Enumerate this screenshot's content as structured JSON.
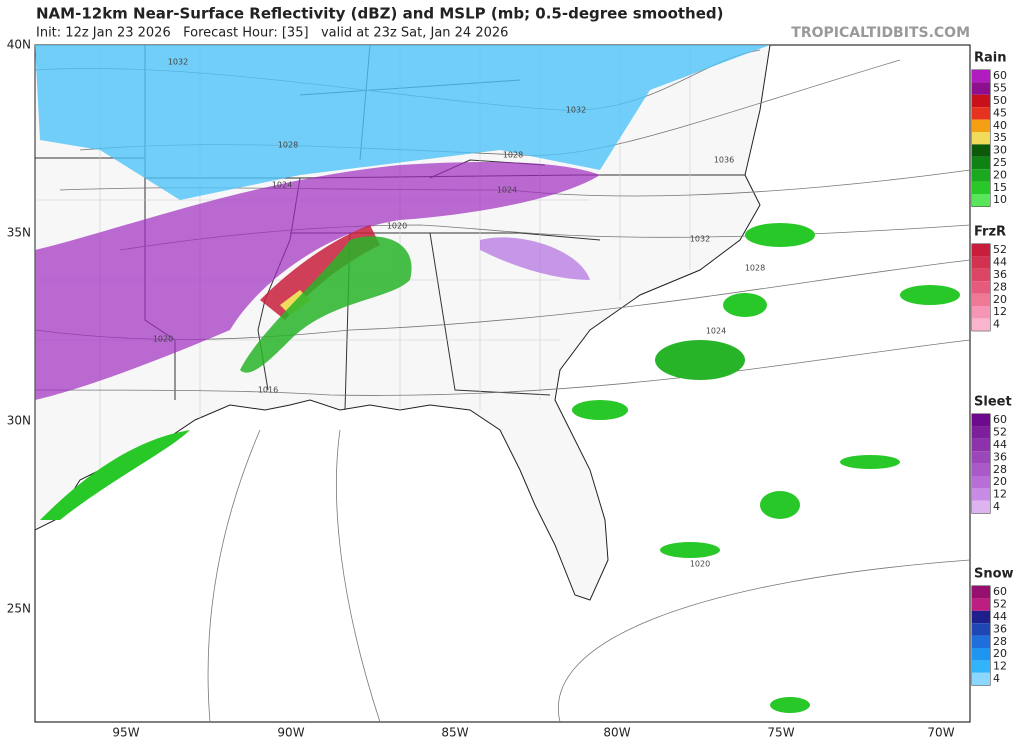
{
  "header": {
    "title": "NAM-12km Near-Surface Reflectivity (dBZ) and MSLP (mb; 0.5-degree smoothed)",
    "subtitle": "Init: 12z Jan 23 2026   Forecast Hour: [35]   valid at 23z Sat, Jan 24 2026",
    "credit": "TROPICALTIDBITS.COM"
  },
  "map": {
    "lat_labels": [
      "40N",
      "35N",
      "30N",
      "25N"
    ],
    "lon_labels": [
      "95W",
      "90W",
      "85W",
      "80W",
      "75W",
      "70W"
    ],
    "isobar_labels": [
      "1032",
      "1032",
      "1028",
      "1028",
      "1036",
      "1024",
      "1024",
      "1020",
      "1032",
      "1028",
      "1024",
      "1020",
      "1016",
      "1020"
    ]
  },
  "legends": [
    {
      "title": "Rain",
      "values": [
        60,
        55,
        50,
        45,
        40,
        35,
        30,
        25,
        20,
        15,
        10
      ],
      "colors": [
        "#b01cc0",
        "#8e0f8e",
        "#c80f1a",
        "#e6321e",
        "#f5a014",
        "#f0dc5a",
        "#0a5a0a",
        "#0f8214",
        "#19a81e",
        "#28c828",
        "#5ae65a"
      ]
    },
    {
      "title": "FrzR",
      "values": [
        52,
        44,
        36,
        28,
        20,
        12,
        4
      ],
      "colors": [
        "#c81e3c",
        "#d23250",
        "#dc4664",
        "#e65a7d",
        "#ee7896",
        "#f496b4",
        "#fab4cd"
      ]
    },
    {
      "title": "Sleet",
      "values": [
        60,
        52,
        44,
        36,
        28,
        20,
        12,
        4
      ],
      "colors": [
        "#6e0a8c",
        "#7d1e9b",
        "#8c32aa",
        "#9b46b9",
        "#aa5ac8",
        "#b96ed7",
        "#c88ce6",
        "#dcb4f0"
      ]
    },
    {
      "title": "Snow",
      "values": [
        60,
        52,
        44,
        36,
        28,
        20,
        12,
        4
      ],
      "colors": [
        "#960f6e",
        "#be1e82",
        "#1e1e8c",
        "#1e46b4",
        "#1e6edc",
        "#1e96f0",
        "#32b4fa",
        "#8cd7ff"
      ]
    }
  ]
}
